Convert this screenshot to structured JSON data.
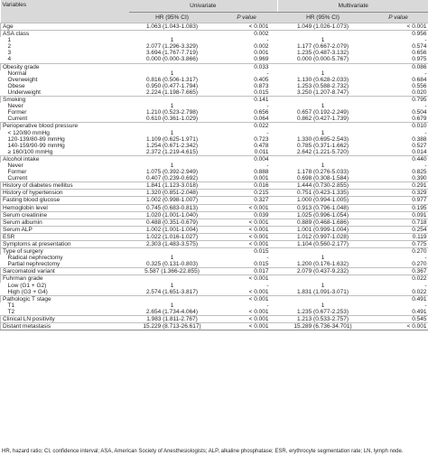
{
  "header": {
    "variables": "Variables",
    "univariate": "Univariate",
    "multivariate": "Multivariate",
    "hr": "HR (95% CI)",
    "p": "P value"
  },
  "rows": [
    {
      "label": "Age",
      "indent": false,
      "group": true,
      "uhr": "1.063 (1.043-1.083)",
      "up": "< 0.001",
      "mhr": "1.049 (1.026-1.073)",
      "mp": "< 0.001"
    },
    {
      "label": "ASA class",
      "indent": false,
      "group": true,
      "uhr": "",
      "up": "0.002",
      "mhr": "",
      "mp": "0.956"
    },
    {
      "label": "1",
      "indent": true,
      "group": false,
      "uhr": "1",
      "up": "-",
      "mhr": "1",
      "mp": "-"
    },
    {
      "label": "2",
      "indent": true,
      "group": false,
      "uhr": "2.077 (1.296-3.329)",
      "up": "0.002",
      "mhr": "1.177 (0.667-2.079)",
      "mp": "0.574"
    },
    {
      "label": "3",
      "indent": true,
      "group": false,
      "uhr": "3.694 (1.767-7.719)",
      "up": "0.001",
      "mhr": "1.235 (0.487-3.132)",
      "mp": "0.656"
    },
    {
      "label": "4",
      "indent": true,
      "group": false,
      "uhr": "0.000 (0.000-3.866)",
      "up": "0.969",
      "mhr": "0.000 (0.000-5.767)",
      "mp": "0.975"
    },
    {
      "label": "Obesity grade",
      "indent": false,
      "group": true,
      "uhr": "",
      "up": "0.033",
      "mhr": "",
      "mp": "0.086"
    },
    {
      "label": "Normal",
      "indent": true,
      "group": false,
      "uhr": "1",
      "up": "-",
      "mhr": "1",
      "mp": "-"
    },
    {
      "label": "Overweight",
      "indent": true,
      "group": false,
      "uhr": "0.816 (0.506-1.317)",
      "up": "0.405",
      "mhr": "1.130 (0.628-2.033)",
      "mp": "0.684"
    },
    {
      "label": "Obese",
      "indent": true,
      "group": false,
      "uhr": "0.950 (0.477-1.794)",
      "up": "0.873",
      "mhr": "1.253 (0.588-2.732)",
      "mp": "0.556"
    },
    {
      "label": "Underweight",
      "indent": true,
      "group": false,
      "uhr": "2.224 (1.198-7.665)",
      "up": "0.015",
      "mhr": "3.250 (1.207-8.747)",
      "mp": "0.020"
    },
    {
      "label": "Smoking",
      "indent": false,
      "group": true,
      "uhr": "",
      "up": "0.141",
      "mhr": "",
      "mp": "0.795"
    },
    {
      "label": "Never",
      "indent": true,
      "group": false,
      "uhr": "1",
      "up": "-",
      "mhr": "1",
      "mp": "-"
    },
    {
      "label": "Former",
      "indent": true,
      "group": false,
      "uhr": "1.210 (0.523-2.798)",
      "up": "0.656",
      "mhr": "0.657 (0.192-2.249)",
      "mp": "0.504"
    },
    {
      "label": "Current",
      "indent": true,
      "group": false,
      "uhr": "0.610 (0.361-1.029)",
      "up": "0.064",
      "mhr": "0.862 (0.427-1.739)",
      "mp": "0.679"
    },
    {
      "label": "Perioperative blood pressure",
      "indent": false,
      "group": true,
      "uhr": "",
      "up": "0.022",
      "mhr": "",
      "mp": "0.010"
    },
    {
      "label": "< 120/80 mmHg",
      "indent": true,
      "group": false,
      "uhr": "1",
      "up": "-",
      "mhr": "1",
      "mp": "-"
    },
    {
      "label": "120-139/80-89 mmHg",
      "indent": true,
      "group": false,
      "uhr": "1.109 (0.625-1.971)",
      "up": "0.723",
      "mhr": "1.330 (0.695-2.543)",
      "mp": "0.388"
    },
    {
      "label": "140-159/90-99 mmHg",
      "indent": true,
      "group": false,
      "uhr": "1.254 (0.671-2.342)",
      "up": "0.478",
      "mhr": "0.785 (0.371-1.662)",
      "mp": "0.527"
    },
    {
      "label": "≥ 160/100 mmHg",
      "indent": true,
      "group": false,
      "uhr": "2.372 (1.219-4.615)",
      "up": "0.011",
      "mhr": "2.642 (1.221-5.720)",
      "mp": "0.014"
    },
    {
      "label": "Alcohol intake",
      "indent": false,
      "group": true,
      "uhr": "",
      "up": "0.004",
      "mhr": "",
      "mp": "0.440"
    },
    {
      "label": "Never",
      "indent": true,
      "group": false,
      "uhr": "1",
      "up": "-",
      "mhr": "1",
      "mp": "-"
    },
    {
      "label": "Former",
      "indent": true,
      "group": false,
      "uhr": "1.075 (0.392-2.949)",
      "up": "0.888",
      "mhr": "1.178 (0.276-5.033)",
      "mp": "0.825"
    },
    {
      "label": "Current",
      "indent": true,
      "group": false,
      "uhr": "0.407 (0.239-0.692)",
      "up": "0.001",
      "mhr": "0.698 (0.308-1.584)",
      "mp": "0.390"
    },
    {
      "label": "History of diabetes mellitus",
      "indent": false,
      "group": true,
      "uhr": "1.841 (1.123-3.018)",
      "up": "0.016",
      "mhr": "1.444 (0.730-2.855)",
      "mp": "0.291"
    },
    {
      "label": "History of hypertension",
      "indent": false,
      "group": true,
      "uhr": "1.320 (0.851-2.048)",
      "up": "0.215",
      "mhr": "0.751 (0.423-1.335)",
      "mp": "0.329"
    },
    {
      "label": "Fasting blood glucose",
      "indent": false,
      "group": true,
      "uhr": "1.002 (0.998-1.007)",
      "up": "0.327",
      "mhr": "1.000 (0.994-1.005)",
      "mp": "0.977"
    },
    {
      "label": "Hemoglobin level",
      "indent": false,
      "group": true,
      "uhr": "0.745 (0.683-0.813)",
      "up": "< 0.001",
      "mhr": "0.913 (0.796-1.048)",
      "mp": "0.195"
    },
    {
      "label": "Serum creatinine",
      "indent": false,
      "group": true,
      "uhr": "1.020 (1.001-1.040)",
      "up": "0.039",
      "mhr": "1.025 (0.996-1.054)",
      "mp": "0.091"
    },
    {
      "label": "Serum albumin",
      "indent": false,
      "group": true,
      "uhr": "0.488 (0.351-0.679)",
      "up": "< 0.001",
      "mhr": "0.889 (0.468-1.686)",
      "mp": "0.718"
    },
    {
      "label": "Serum ALP",
      "indent": false,
      "group": true,
      "uhr": "1.002 (1.001-1.004)",
      "up": "< 0.001",
      "mhr": "1.001 (0.999-1.004)",
      "mp": "0.254"
    },
    {
      "label": "ESR",
      "indent": false,
      "group": true,
      "uhr": "1.022 (1.016-1.027)",
      "up": "< 0.001",
      "mhr": "1.012 (0.997-1.028)",
      "mp": "0.119"
    },
    {
      "label": "Symptoms at presentation",
      "indent": false,
      "group": true,
      "uhr": "2.303 (1.483-3.575)",
      "up": "< 0.001",
      "mhr": "1.104 (0.560-2.177)",
      "mp": "0.775"
    },
    {
      "label": "Type of surgery",
      "indent": false,
      "group": true,
      "uhr": "",
      "up": "0.015",
      "mhr": "",
      "mp": "0.270"
    },
    {
      "label": "Radical nephrectomy",
      "indent": true,
      "group": false,
      "uhr": "1",
      "up": "-",
      "mhr": "1",
      "mp": "-"
    },
    {
      "label": "Partial nephrectomy",
      "indent": true,
      "group": false,
      "uhr": "0.325 (0.131-0.803)",
      "up": "0.015",
      "mhr": "1.200 (0.176-1.632)",
      "mp": "0.270"
    },
    {
      "label": "Sarcomatoid variant",
      "indent": false,
      "group": true,
      "uhr": "5.587 (1.366-22.855)",
      "up": "0.017",
      "mhr": "2.079 (0.437-9.232)",
      "mp": "0.367"
    },
    {
      "label": "Fuhrman grade",
      "indent": false,
      "group": true,
      "uhr": "",
      "up": "< 0.001",
      "mhr": "",
      "mp": "0.022"
    },
    {
      "label": "Low (G1 + G2)",
      "indent": true,
      "group": false,
      "uhr": "1",
      "up": "-",
      "mhr": "1",
      "mp": "-"
    },
    {
      "label": "High (G3 + G4)",
      "indent": true,
      "group": false,
      "uhr": "2.574 (1.651-3.817)",
      "up": "< 0.001",
      "mhr": "1.831 (1.091-3.071)",
      "mp": "0.022"
    },
    {
      "label": "Pathologic T stage",
      "indent": false,
      "group": true,
      "uhr": "",
      "up": "< 0.001",
      "mhr": "",
      "mp": "0.491"
    },
    {
      "label": "T1",
      "indent": true,
      "group": false,
      "uhr": "1",
      "up": "-",
      "mhr": "1",
      "mp": "-"
    },
    {
      "label": "T2",
      "indent": true,
      "group": false,
      "uhr": "2.654 (1.734-4.064)",
      "up": "< 0.001",
      "mhr": "1.235 (0.677-2.253)",
      "mp": "0.491"
    },
    {
      "label": "Clinical LN positivity",
      "indent": false,
      "group": true,
      "uhr": "1.983 (1.811-2.767)",
      "up": "< 0.001",
      "mhr": "1.213 (0.533-2.757)",
      "mp": "0.545"
    },
    {
      "label": "Distant metastasis",
      "indent": false,
      "group": true,
      "uhr": "15.229 (8.713-26.617)",
      "up": "< 0.001",
      "mhr": "15.289 (6.736-34.701)",
      "mp": "< 0.001"
    }
  ],
  "footnote": "HR, hazard ratio; CI, confidence interval; ASA, American Society of Anesthesiologists; ALP, alkaline phosphatase; ESR, erythrocyte segmentation rate; LN, lymph node."
}
